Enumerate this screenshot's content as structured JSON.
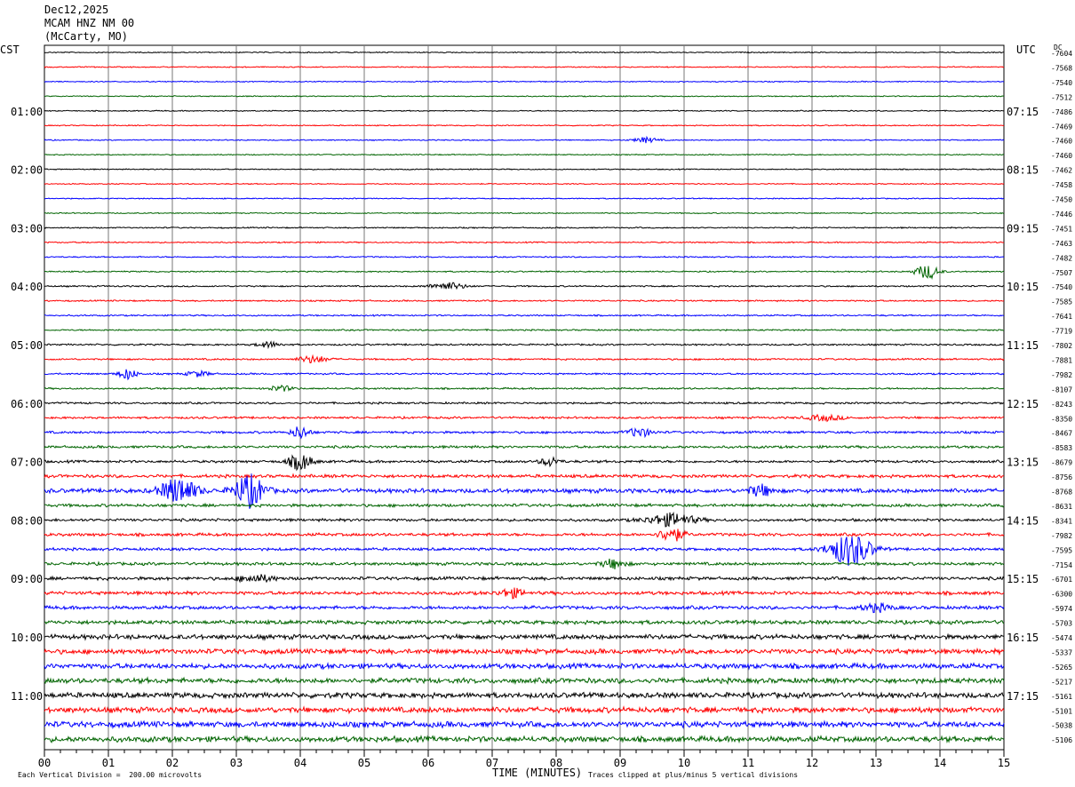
{
  "header": {
    "date": "Dec12,2025",
    "station": "MCAM HNZ NM 00",
    "location": "(McCarty, MO)"
  },
  "axes": {
    "left_timezone": "CST",
    "right_timezone": "UTC",
    "dc_label": "DC",
    "xlabel": "TIME (MINUTES)",
    "footer_left": "Each Vertical Division =  200.00 microvolts",
    "footer_right": "Traces clipped at plus/minus 5 vertical divisions"
  },
  "chart_data": {
    "type": "line",
    "title": "",
    "xlabel": "TIME (MINUTES)",
    "ylabel": "",
    "xlim": [
      0,
      15
    ],
    "x_ticks": [
      "00",
      "01",
      "02",
      "03",
      "04",
      "05",
      "06",
      "07",
      "08",
      "09",
      "10",
      "11",
      "12",
      "13",
      "14",
      "15"
    ],
    "grid": true,
    "trace_colors": [
      "#000000",
      "#ff0000",
      "#0000ff",
      "#006400"
    ],
    "trace_count": 48,
    "left_hour_labels": [
      "01:00",
      "02:00",
      "03:00",
      "04:00",
      "05:00",
      "06:00",
      "07:00",
      "08:00",
      "09:00",
      "10:00",
      "11:00"
    ],
    "right_hour_labels": [
      "07:15",
      "08:15",
      "09:15",
      "10:15",
      "11:15",
      "12:15",
      "13:15",
      "14:15",
      "15:15",
      "16:15",
      "17:15"
    ],
    "dc_offsets": [
      "-7604",
      "-7568",
      "-7540",
      "-7512",
      "-7486",
      "-7469",
      "-7460",
      "-7460",
      "-7462",
      "-7458",
      "-7450",
      "-7446",
      "-7451",
      "-7463",
      "-7482",
      "-7507",
      "-7540",
      "-7585",
      "-7641",
      "-7719",
      "-7802",
      "-7881",
      "-7982",
      "-8107",
      "-8243",
      "-8350",
      "-8467",
      "-8583",
      "-8679",
      "-8756",
      "-8768",
      "-8631",
      "-8341",
      "-7982",
      "-7595",
      "-7154",
      "-6701",
      "-6300",
      "-5974",
      "-5703",
      "-5474",
      "-5337",
      "-5265",
      "-5217",
      "-5161",
      "-5101",
      "-5038",
      "-5106"
    ],
    "noise_levels": [
      0.5,
      0.5,
      0.5,
      0.5,
      0.5,
      0.5,
      0.5,
      0.5,
      0.5,
      0.5,
      0.5,
      0.5,
      0.6,
      0.6,
      0.6,
      0.6,
      0.7,
      0.7,
      0.7,
      0.7,
      0.8,
      0.8,
      0.8,
      0.8,
      0.9,
      1.0,
      1.1,
      1.2,
      1.2,
      1.5,
      2.0,
      1.4,
      1.3,
      1.4,
      1.3,
      1.4,
      1.5,
      1.6,
      1.6,
      1.8,
      2.2,
      2.3,
      2.4,
      2.4,
      2.5,
      2.6,
      2.7,
      2.6
    ],
    "events": [
      {
        "trace": 6,
        "minute": 9.4,
        "amp": 3,
        "dur": 0.4
      },
      {
        "trace": 15,
        "minute": 13.8,
        "amp": 8,
        "dur": 0.4
      },
      {
        "trace": 16,
        "minute": 6.3,
        "amp": 4,
        "dur": 0.6
      },
      {
        "trace": 20,
        "minute": 3.5,
        "amp": 3,
        "dur": 0.4
      },
      {
        "trace": 21,
        "minute": 4.2,
        "amp": 4,
        "dur": 0.5
      },
      {
        "trace": 22,
        "minute": 1.3,
        "amp": 6,
        "dur": 0.3
      },
      {
        "trace": 22,
        "minute": 2.4,
        "amp": 3,
        "dur": 0.4
      },
      {
        "trace": 23,
        "minute": 3.7,
        "amp": 3,
        "dur": 0.4
      },
      {
        "trace": 25,
        "minute": 12.2,
        "amp": 3,
        "dur": 0.6
      },
      {
        "trace": 26,
        "minute": 4.0,
        "amp": 7,
        "dur": 0.3
      },
      {
        "trace": 26,
        "minute": 9.3,
        "amp": 5,
        "dur": 0.4
      },
      {
        "trace": 28,
        "minute": 4.0,
        "amp": 9,
        "dur": 0.4
      },
      {
        "trace": 28,
        "minute": 7.9,
        "amp": 5,
        "dur": 0.3
      },
      {
        "trace": 30,
        "minute": 2.1,
        "amp": 14,
        "dur": 0.6
      },
      {
        "trace": 30,
        "minute": 3.2,
        "amp": 18,
        "dur": 0.5
      },
      {
        "trace": 30,
        "minute": 11.2,
        "amp": 6,
        "dur": 0.4
      },
      {
        "trace": 32,
        "minute": 9.8,
        "amp": 7,
        "dur": 0.8
      },
      {
        "trace": 33,
        "minute": 9.8,
        "amp": 8,
        "dur": 0.4
      },
      {
        "trace": 34,
        "minute": 12.6,
        "amp": 18,
        "dur": 0.7
      },
      {
        "trace": 35,
        "minute": 8.9,
        "amp": 5,
        "dur": 0.4
      },
      {
        "trace": 36,
        "minute": 3.3,
        "amp": 4,
        "dur": 0.6
      },
      {
        "trace": 37,
        "minute": 7.3,
        "amp": 5,
        "dur": 0.4
      },
      {
        "trace": 38,
        "minute": 13.0,
        "amp": 4,
        "dur": 0.5
      }
    ]
  }
}
